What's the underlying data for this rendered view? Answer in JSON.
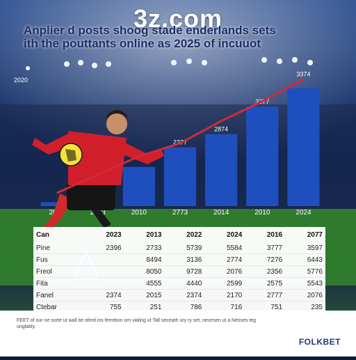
{
  "watermark": "3z.com",
  "headline": {
    "line1": "Anplier d posts shoog stade enderlands sets",
    "line2": "ith the pouttants online as 2025 of incuuot"
  },
  "colors": {
    "bar": "#1f4fbf",
    "line": "#d42a3a",
    "sky": "#0a1a3a",
    "table_bg": "#ffffff",
    "brand": "#1a3b7a"
  },
  "chart_data": {
    "type": "bar",
    "title": "",
    "xlabel": "",
    "ylabel": "",
    "ylim": [
      0,
      100
    ],
    "y_tick_labels": [
      "2020"
    ],
    "categories": [
      "2023",
      "2023",
      "2010",
      "2773",
      "2014",
      "2010",
      "2024"
    ],
    "values": [
      3,
      10,
      30,
      45,
      55,
      76,
      90
    ],
    "bar_labels": [
      "",
      "",
      "",
      "2277",
      "2874",
      "3377",
      ""
    ],
    "line": {
      "values": [
        10,
        24,
        38,
        48,
        65,
        80,
        97
      ],
      "labels": [
        "",
        "",
        "",
        "",
        "",
        "",
        "3374"
      ]
    },
    "grid": false,
    "legend": "none"
  },
  "table": {
    "header": [
      "Can",
      "2023",
      "2013",
      "2022",
      "2024",
      "2016",
      "2077"
    ],
    "rows": [
      [
        "Pine",
        "2396",
        "2733",
        "5739",
        "5584",
        "3777",
        "3597"
      ],
      [
        "Fus",
        "",
        "8494",
        "3136",
        "2774",
        "7276",
        "6443"
      ],
      [
        "Freol",
        "",
        "8050",
        "9728",
        "2076",
        "2356",
        "5776"
      ],
      [
        "Fita",
        "",
        "4555",
        "4440",
        "2599",
        "2575",
        "5543"
      ],
      [
        "Fanel",
        "2374",
        "2015",
        "2374",
        "2170",
        "2777",
        "2076"
      ],
      [
        "Ctebar",
        "755",
        "251",
        "786",
        "716",
        "751",
        "235"
      ]
    ]
  },
  "footer": {
    "note": "FEET of our ne sorte ut wall ite oferd ins ferretion om vialirig ut Tall seceath ury ry set, necesen ut a Nesses teg unglatity.",
    "brand": "FOLKBET"
  }
}
